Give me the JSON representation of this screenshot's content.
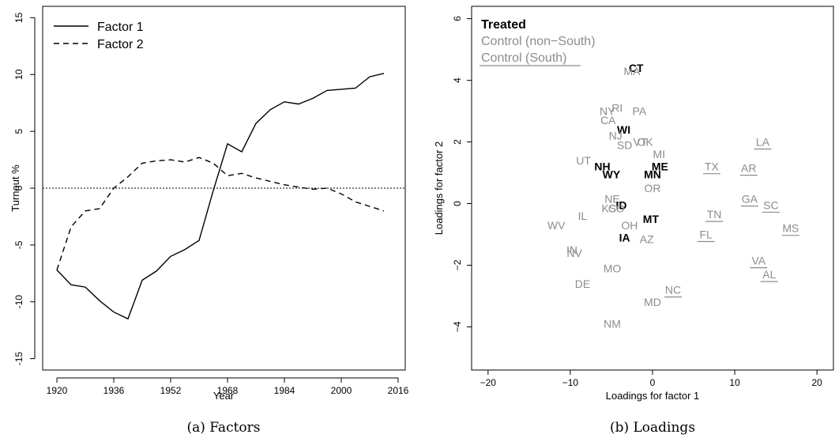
{
  "captions": {
    "a": "(a) Factors",
    "b": "(b) Loadings"
  },
  "colors": {
    "treated": "#000000",
    "control": "#8c8c8c",
    "axis": "#000000"
  },
  "chart_data": [
    {
      "type": "line",
      "xlabel": "Year",
      "ylabel": "Turnout %",
      "xlim": [
        1916,
        2018
      ],
      "ylim": [
        -16,
        16
      ],
      "xticks": [
        1920,
        1936,
        1952,
        1968,
        1984,
        2000,
        2016
      ],
      "yticks": [
        -15,
        -10,
        -5,
        0,
        5,
        10,
        15
      ],
      "x": [
        1920,
        1924,
        1928,
        1932,
        1936,
        1940,
        1944,
        1948,
        1952,
        1956,
        1960,
        1964,
        1968,
        1972,
        1976,
        1980,
        1984,
        1988,
        1992,
        1996,
        2000,
        2004,
        2008,
        2012
      ],
      "series": [
        {
          "name": "Factor 1",
          "style": "solid",
          "values": [
            -7.2,
            -8.5,
            -8.7,
            -9.9,
            -10.9,
            -11.5,
            -8.1,
            -7.3,
            -6.0,
            -5.4,
            -4.6,
            -0.2,
            3.9,
            3.2,
            5.7,
            6.9,
            7.6,
            7.4,
            7.9,
            8.6,
            8.7,
            8.8,
            9.8,
            10.1
          ]
        },
        {
          "name": "Factor 2",
          "style": "dashed",
          "values": [
            -7.2,
            -3.4,
            -2.0,
            -1.8,
            0.0,
            1.0,
            2.2,
            2.4,
            2.5,
            2.3,
            2.7,
            2.2,
            1.1,
            1.3,
            0.9,
            0.6,
            0.3,
            0.1,
            -0.1,
            0.0,
            -0.5,
            -1.2,
            -1.6,
            -2.0
          ]
        }
      ],
      "reference_line": {
        "y": 0,
        "style": "dotted"
      },
      "legend": {
        "placement": "top-left"
      }
    },
    {
      "type": "scatter",
      "xlabel": "Loadings for factor 1",
      "ylabel": "Loadings for factor 2",
      "xlim": [
        -22,
        22
      ],
      "ylim": [
        -5.4,
        6.4
      ],
      "xticks": [
        -20,
        -10,
        0,
        10,
        20
      ],
      "yticks": [
        -4,
        -2,
        0,
        2,
        4,
        6
      ],
      "legend": {
        "placement": "top-left",
        "entries": [
          {
            "label": "Treated",
            "group": "treated"
          },
          {
            "label": "Control (non−South)",
            "group": "control"
          },
          {
            "label": "Control (South)",
            "group": "south"
          }
        ]
      },
      "points": [
        {
          "label": "CT",
          "x": -2.0,
          "y": 4.4,
          "group": "treated"
        },
        {
          "label": "MA",
          "x": -2.5,
          "y": 4.3,
          "group": "control"
        },
        {
          "label": "NY",
          "x": -5.5,
          "y": 3.0,
          "group": "control"
        },
        {
          "label": "RI",
          "x": -4.3,
          "y": 3.1,
          "group": "control"
        },
        {
          "label": "PA",
          "x": -1.6,
          "y": 3.0,
          "group": "control"
        },
        {
          "label": "CA",
          "x": -5.4,
          "y": 2.7,
          "group": "control"
        },
        {
          "label": "WI",
          "x": -3.5,
          "y": 2.4,
          "group": "treated"
        },
        {
          "label": "NJ",
          "x": -4.5,
          "y": 2.2,
          "group": "control"
        },
        {
          "label": "VT",
          "x": -1.5,
          "y": 2.0,
          "group": "control"
        },
        {
          "label": "OK",
          "x": -0.9,
          "y": 2.0,
          "group": "control"
        },
        {
          "label": "SD",
          "x": -3.4,
          "y": 1.9,
          "group": "control"
        },
        {
          "label": "MI",
          "x": 0.8,
          "y": 1.6,
          "group": "control"
        },
        {
          "label": "UT",
          "x": -8.4,
          "y": 1.4,
          "group": "control"
        },
        {
          "label": "ME",
          "x": 0.9,
          "y": 1.2,
          "group": "treated"
        },
        {
          "label": "NH",
          "x": -6.1,
          "y": 1.2,
          "group": "treated"
        },
        {
          "label": "MN",
          "x": 0.0,
          "y": 0.95,
          "group": "treated"
        },
        {
          "label": "WY",
          "x": -5.0,
          "y": 0.95,
          "group": "treated"
        },
        {
          "label": "OR",
          "x": 0.0,
          "y": 0.5,
          "group": "control"
        },
        {
          "label": "NE",
          "x": -4.9,
          "y": 0.15,
          "group": "control"
        },
        {
          "label": "ID",
          "x": -3.8,
          "y": -0.05,
          "group": "treated"
        },
        {
          "label": "KS",
          "x": -5.3,
          "y": -0.15,
          "group": "control"
        },
        {
          "label": "CO",
          "x": -4.4,
          "y": -0.15,
          "group": "control"
        },
        {
          "label": "IL",
          "x": -8.5,
          "y": -0.4,
          "group": "control"
        },
        {
          "label": "MT",
          "x": -0.2,
          "y": -0.5,
          "group": "treated"
        },
        {
          "label": "WV",
          "x": -11.7,
          "y": -0.7,
          "group": "control"
        },
        {
          "label": "OH",
          "x": -2.8,
          "y": -0.7,
          "group": "control"
        },
        {
          "label": "IA",
          "x": -3.4,
          "y": -1.1,
          "group": "treated"
        },
        {
          "label": "AZ",
          "x": -0.7,
          "y": -1.15,
          "group": "control"
        },
        {
          "label": "IN",
          "x": -9.8,
          "y": -1.5,
          "group": "control"
        },
        {
          "label": "NV",
          "x": -9.5,
          "y": -1.6,
          "group": "control"
        },
        {
          "label": "MO",
          "x": -4.9,
          "y": -2.1,
          "group": "control"
        },
        {
          "label": "DE",
          "x": -8.5,
          "y": -2.6,
          "group": "control"
        },
        {
          "label": "MD",
          "x": 0.0,
          "y": -3.2,
          "group": "control"
        },
        {
          "label": "NM",
          "x": -4.9,
          "y": -3.9,
          "group": "control"
        },
        {
          "label": "NC",
          "x": 2.5,
          "y": -2.8,
          "group": "south"
        },
        {
          "label": "LA",
          "x": 13.4,
          "y": 2.0,
          "group": "south"
        },
        {
          "label": "TX",
          "x": 7.2,
          "y": 1.2,
          "group": "south"
        },
        {
          "label": "AR",
          "x": 11.7,
          "y": 1.15,
          "group": "south"
        },
        {
          "label": "GA",
          "x": 11.8,
          "y": 0.15,
          "group": "south"
        },
        {
          "label": "SC",
          "x": 14.4,
          "y": -0.05,
          "group": "south"
        },
        {
          "label": "TN",
          "x": 7.5,
          "y": -0.35,
          "group": "south"
        },
        {
          "label": "MS",
          "x": 16.8,
          "y": -0.8,
          "group": "south"
        },
        {
          "label": "FL",
          "x": 6.5,
          "y": -1.0,
          "group": "south"
        },
        {
          "label": "VA",
          "x": 12.9,
          "y": -1.85,
          "group": "south"
        },
        {
          "label": "AL",
          "x": 14.2,
          "y": -2.3,
          "group": "south"
        }
      ]
    }
  ]
}
